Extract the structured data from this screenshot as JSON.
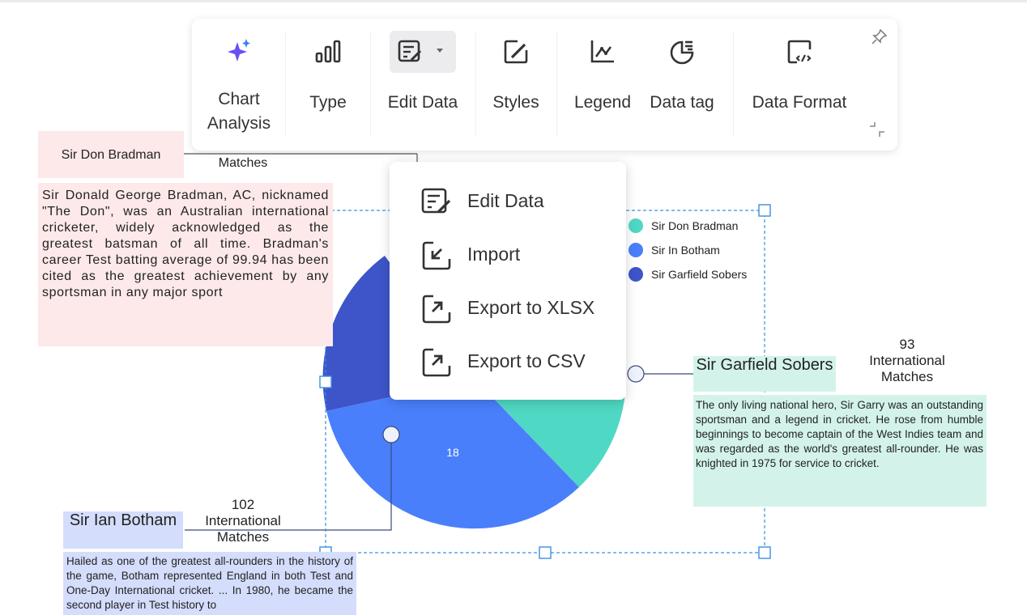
{
  "toolbar": {
    "items": [
      {
        "label": "Chart\nAnalysis",
        "icon": "sparkle-icon"
      },
      {
        "label": "Type",
        "icon": "bar-chart-icon"
      },
      {
        "label": "Edit Data",
        "icon": "edit-data-icon"
      },
      {
        "label": "Styles",
        "icon": "styles-icon"
      },
      {
        "label": "Legend",
        "icon": "legend-icon"
      },
      {
        "label": "Data tag",
        "icon": "data-tag-icon"
      },
      {
        "label": "Data Format",
        "icon": "data-format-icon"
      }
    ]
  },
  "edit_menu": {
    "items": [
      {
        "label": "Edit Data",
        "icon": "edit-data-icon"
      },
      {
        "label": "Import",
        "icon": "import-icon"
      },
      {
        "label": "Export to XLSX",
        "icon": "export-icon"
      },
      {
        "label": "Export to CSV",
        "icon": "export-icon"
      }
    ]
  },
  "notes": {
    "bradman": {
      "name": "Sir Don Bradman",
      "stat": "Matches",
      "desc": "Sir Donald George Bradman, AC, nicknamed \"The Don\", was an Australian international cricketer, widely acknowledged as the greatest batsman of all time. Bradman's career Test batting average of 99.94 has been cited as the greatest achievement by any sportsman in any major sport"
    },
    "sobers": {
      "name": "Sir Garfield Sobers",
      "stat_value": "93",
      "stat_label": "International Matches",
      "desc": "The only living national hero, Sir Garry was an outstanding sportsman and a legend in cricket. He rose from humble beginnings to become captain of the West Indies team and was regarded as the world's greatest all-rounder. He was knighted in 1975 for service to cricket."
    },
    "botham": {
      "name": "Sir Ian Botham",
      "stat_value": "102",
      "stat_label": "International Matches",
      "desc": "Hailed as one of the greatest all-rounders in the history of the game, Botham represented England in both Test and One-Day International cricket. ... In 1980, he became the second player in Test history to"
    }
  },
  "chart_data": {
    "type": "pie",
    "series": [
      {
        "name": "Sir Don Bradman",
        "color": "#4fd8c4"
      },
      {
        "name": "Sir In Botham",
        "color": "#4a7ffb"
      },
      {
        "name": "Sir Garfield Sobers",
        "color": "#3d55c9"
      }
    ],
    "data_labels": [
      "18"
    ],
    "legend_position": "top-right"
  }
}
